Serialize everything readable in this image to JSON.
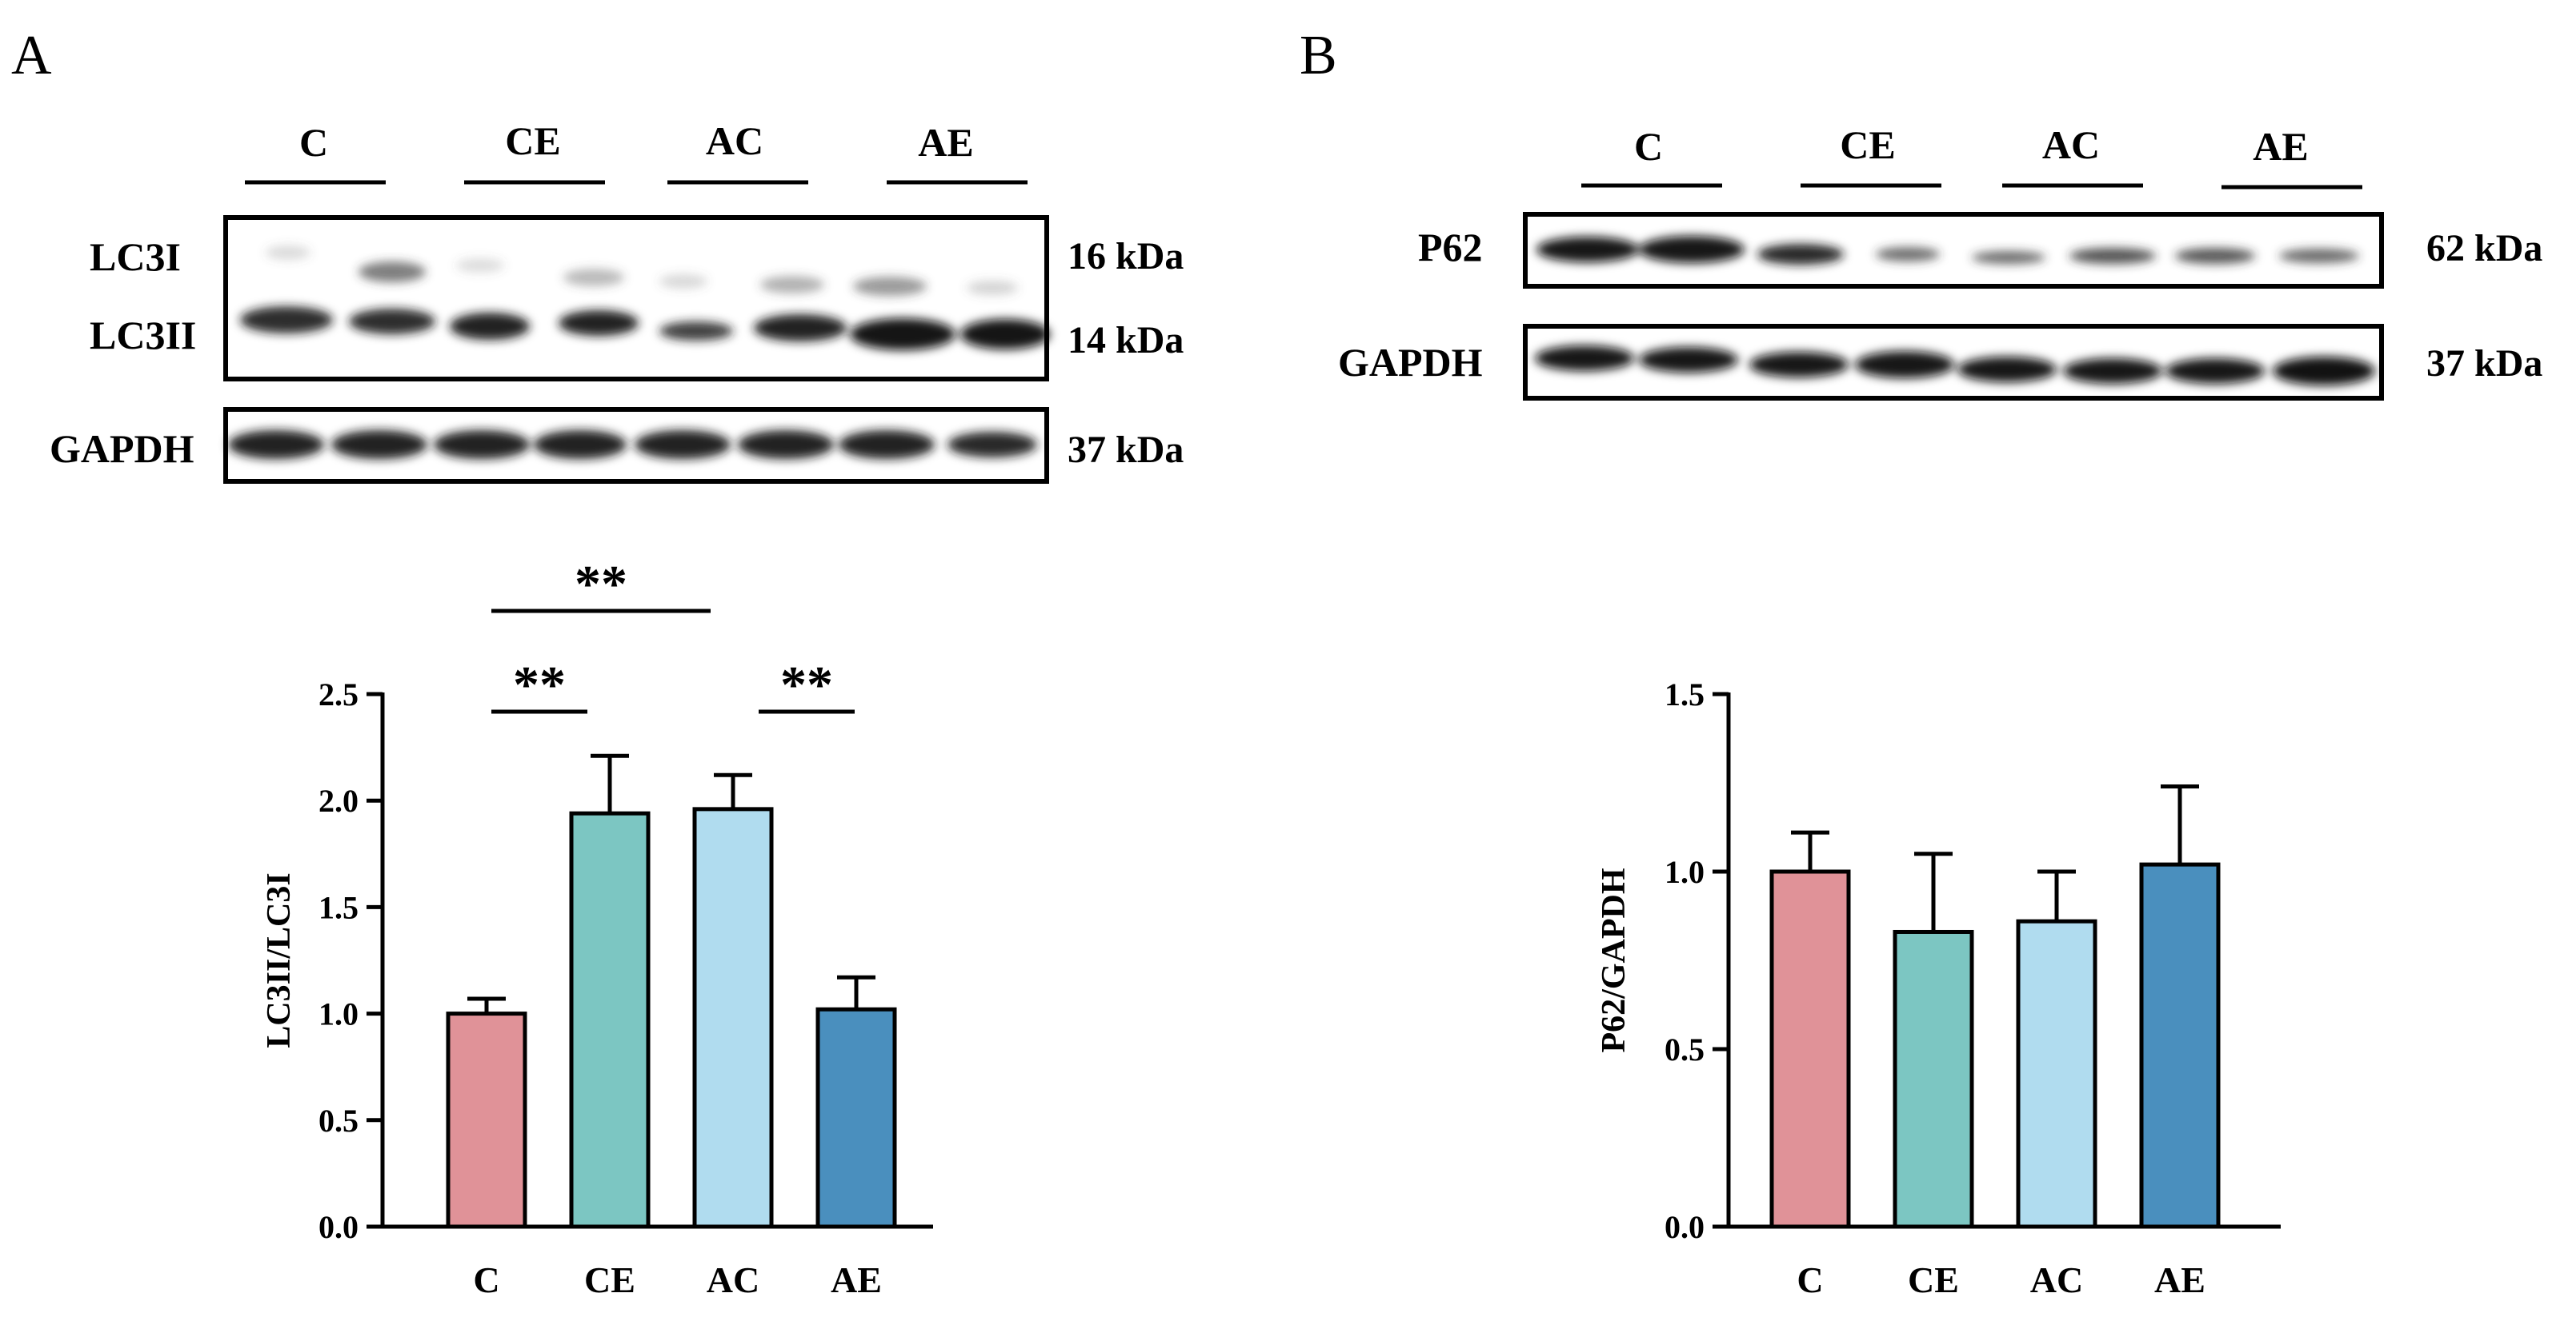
{
  "panels": [
    {
      "letter": "A",
      "blot": {
        "lanes": [
          "C",
          "CE",
          "AC",
          "AE"
        ],
        "rows": [
          {
            "proteins": [
              "LC3I",
              "LC3II"
            ],
            "kda": [
              "16 kDa",
              "14 kDa"
            ]
          },
          {
            "proteins": [
              "GAPDH"
            ],
            "kda": [
              "37 kDa"
            ]
          }
        ]
      },
      "significance": [
        {
          "from": "C",
          "to": "AC",
          "label": "**"
        },
        {
          "from": "C",
          "to": "CE",
          "label": "**"
        },
        {
          "from": "AC",
          "to": "AE",
          "label": "**"
        }
      ]
    },
    {
      "letter": "B",
      "blot": {
        "lanes": [
          "C",
          "CE",
          "AC",
          "AE"
        ],
        "rows": [
          {
            "proteins": [
              "P62"
            ],
            "kda": [
              "62 kDa"
            ]
          },
          {
            "proteins": [
              "GAPDH"
            ],
            "kda": [
              "37 kDa"
            ]
          }
        ]
      },
      "significance": []
    }
  ],
  "chart_data": [
    {
      "type": "bar",
      "categories": [
        "C",
        "CE",
        "AC",
        "AE"
      ],
      "values": [
        1.0,
        1.94,
        1.96,
        1.02
      ],
      "errors": [
        0.07,
        0.27,
        0.16,
        0.15
      ],
      "ylabel": "LC3II/LC3I",
      "ylim": [
        0,
        2.5
      ],
      "yticks": [
        "0.0",
        "0.5",
        "1.0",
        "1.5",
        "2.0",
        "2.5"
      ],
      "colors": [
        "#e09298",
        "#7cc6c2",
        "#b0dcef",
        "#4a8fbe"
      ],
      "grid": false
    },
    {
      "type": "bar",
      "categories": [
        "C",
        "CE",
        "AC",
        "AE"
      ],
      "values": [
        1.0,
        0.83,
        0.86,
        1.02
      ],
      "errors": [
        0.11,
        0.22,
        0.14,
        0.22
      ],
      "ylabel": "P62/GAPDH",
      "ylim": [
        0,
        1.5
      ],
      "yticks": [
        "0.0",
        "0.5",
        "1.0",
        "1.5"
      ],
      "colors": [
        "#e09298",
        "#7cc6c2",
        "#b0dcef",
        "#4a8fbe"
      ],
      "grid": false
    }
  ]
}
